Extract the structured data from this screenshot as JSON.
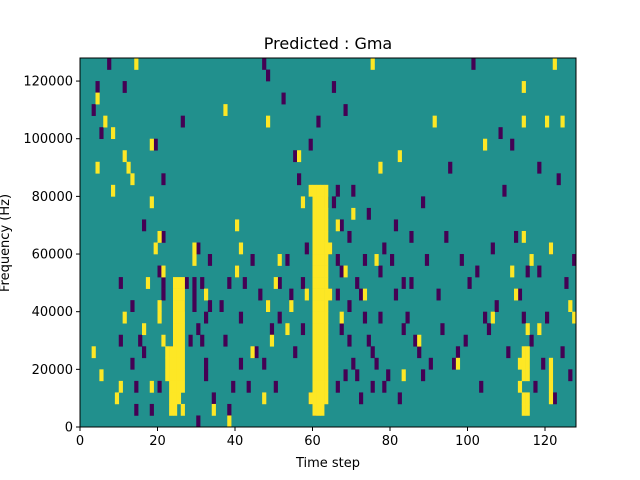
{
  "chart_data": {
    "type": "heatmap",
    "title": "Predicted : Gma",
    "xlabel": "Time step",
    "ylabel": "Frequency (Hz)",
    "xlim": [
      0,
      128
    ],
    "ylim": [
      0,
      128000
    ],
    "x_ticks": [
      0,
      20,
      40,
      60,
      80,
      100,
      120
    ],
    "x_tick_labels": [
      "0",
      "20",
      "40",
      "60",
      "80",
      "100",
      "120"
    ],
    "y_ticks": [
      0,
      20000,
      40000,
      60000,
      80000,
      100000,
      120000
    ],
    "y_tick_labels": [
      "0",
      "20000",
      "40000",
      "60000",
      "80000",
      "100000",
      "120000"
    ],
    "n_time_steps": 128,
    "n_freq_bins": 32,
    "freq_bin_hz": 4000,
    "grid": false,
    "legend": "none",
    "colors": {
      "background": "#21908d",
      "high": "#fde725",
      "low": "#440154"
    },
    "background_value": 0,
    "cells_high": [
      [
        3,
        6
      ],
      [
        4,
        22
      ],
      [
        4,
        28
      ],
      [
        5,
        4
      ],
      [
        6,
        26
      ],
      [
        8,
        25
      ],
      [
        8,
        20
      ],
      [
        9,
        2
      ],
      [
        10,
        3
      ],
      [
        11,
        23
      ],
      [
        11,
        9
      ],
      [
        12,
        22
      ],
      [
        13,
        21
      ],
      [
        14,
        31
      ],
      [
        16,
        8
      ],
      [
        17,
        12
      ],
      [
        18,
        3
      ],
      [
        18,
        24
      ],
      [
        18,
        19
      ],
      [
        19,
        15
      ],
      [
        20,
        10
      ],
      [
        20,
        9
      ],
      [
        20,
        16
      ],
      [
        21,
        13
      ],
      [
        21,
        7
      ],
      [
        22,
        6
      ],
      [
        22,
        5
      ],
      [
        22,
        4
      ],
      [
        23,
        6
      ],
      [
        23,
        5
      ],
      [
        23,
        4
      ],
      [
        23,
        3
      ],
      [
        23,
        2
      ],
      [
        23,
        1
      ],
      [
        24,
        12
      ],
      [
        24,
        11
      ],
      [
        24,
        10
      ],
      [
        24,
        9
      ],
      [
        24,
        8
      ],
      [
        24,
        7
      ],
      [
        24,
        6
      ],
      [
        24,
        5
      ],
      [
        24,
        4
      ],
      [
        24,
        3
      ],
      [
        24,
        2
      ],
      [
        24,
        1
      ],
      [
        25,
        12
      ],
      [
        25,
        11
      ],
      [
        25,
        10
      ],
      [
        25,
        9
      ],
      [
        25,
        8
      ],
      [
        25,
        7
      ],
      [
        25,
        6
      ],
      [
        25,
        5
      ],
      [
        25,
        4
      ],
      [
        25,
        3
      ],
      [
        25,
        2
      ],
      [
        26,
        12
      ],
      [
        26,
        11
      ],
      [
        26,
        10
      ],
      [
        26,
        9
      ],
      [
        26,
        8
      ],
      [
        26,
        7
      ],
      [
        26,
        6
      ],
      [
        26,
        5
      ],
      [
        26,
        4
      ],
      [
        26,
        3
      ],
      [
        26,
        1
      ],
      [
        29,
        15
      ],
      [
        29,
        14
      ],
      [
        32,
        11
      ],
      [
        34,
        1
      ],
      [
        37,
        27
      ],
      [
        38,
        0
      ],
      [
        40,
        13
      ],
      [
        40,
        17
      ],
      [
        41,
        15
      ],
      [
        44,
        6
      ],
      [
        47,
        2
      ],
      [
        48,
        10
      ],
      [
        48,
        26
      ],
      [
        49,
        7
      ],
      [
        50,
        12
      ],
      [
        51,
        14
      ],
      [
        53,
        8
      ],
      [
        54,
        10
      ],
      [
        56,
        23
      ],
      [
        57,
        19
      ],
      [
        58,
        11
      ],
      [
        59,
        2
      ],
      [
        59,
        20
      ],
      [
        60,
        20
      ],
      [
        60,
        19
      ],
      [
        60,
        18
      ],
      [
        60,
        17
      ],
      [
        60,
        16
      ],
      [
        60,
        15
      ],
      [
        60,
        14
      ],
      [
        60,
        13
      ],
      [
        60,
        12
      ],
      [
        60,
        11
      ],
      [
        60,
        10
      ],
      [
        60,
        9
      ],
      [
        60,
        8
      ],
      [
        60,
        7
      ],
      [
        60,
        6
      ],
      [
        60,
        5
      ],
      [
        60,
        4
      ],
      [
        60,
        3
      ],
      [
        60,
        2
      ],
      [
        60,
        1
      ],
      [
        61,
        20
      ],
      [
        61,
        19
      ],
      [
        61,
        18
      ],
      [
        61,
        17
      ],
      [
        61,
        16
      ],
      [
        61,
        15
      ],
      [
        61,
        14
      ],
      [
        61,
        13
      ],
      [
        61,
        12
      ],
      [
        61,
        11
      ],
      [
        61,
        10
      ],
      [
        61,
        9
      ],
      [
        61,
        8
      ],
      [
        61,
        7
      ],
      [
        61,
        6
      ],
      [
        61,
        5
      ],
      [
        61,
        4
      ],
      [
        61,
        3
      ],
      [
        61,
        2
      ],
      [
        61,
        1
      ],
      [
        62,
        20
      ],
      [
        62,
        19
      ],
      [
        62,
        18
      ],
      [
        62,
        17
      ],
      [
        62,
        16
      ],
      [
        62,
        15
      ],
      [
        62,
        14
      ],
      [
        62,
        13
      ],
      [
        62,
        12
      ],
      [
        62,
        11
      ],
      [
        62,
        10
      ],
      [
        62,
        9
      ],
      [
        62,
        8
      ],
      [
        62,
        7
      ],
      [
        62,
        6
      ],
      [
        62,
        5
      ],
      [
        62,
        4
      ],
      [
        62,
        3
      ],
      [
        62,
        2
      ],
      [
        62,
        1
      ],
      [
        63,
        20
      ],
      [
        63,
        19
      ],
      [
        63,
        18
      ],
      [
        63,
        17
      ],
      [
        63,
        16
      ],
      [
        63,
        15
      ],
      [
        63,
        14
      ],
      [
        63,
        13
      ],
      [
        63,
        12
      ],
      [
        63,
        11
      ],
      [
        63,
        10
      ],
      [
        63,
        9
      ],
      [
        63,
        8
      ],
      [
        63,
        7
      ],
      [
        63,
        6
      ],
      [
        63,
        5
      ],
      [
        63,
        4
      ],
      [
        63,
        3
      ],
      [
        63,
        2
      ],
      [
        64,
        15
      ],
      [
        64,
        11
      ],
      [
        66,
        17
      ],
      [
        67,
        9
      ],
      [
        68,
        13
      ],
      [
        70,
        18
      ],
      [
        73,
        11
      ],
      [
        75,
        31
      ],
      [
        76,
        14
      ],
      [
        77,
        22
      ],
      [
        82,
        23
      ],
      [
        83,
        4
      ],
      [
        87,
        7
      ],
      [
        91,
        26
      ],
      [
        97,
        5
      ],
      [
        104,
        24
      ],
      [
        106,
        9
      ],
      [
        111,
        13
      ],
      [
        112,
        11
      ],
      [
        113,
        5
      ],
      [
        113,
        3
      ],
      [
        114,
        29
      ],
      [
        114,
        26
      ],
      [
        114,
        16
      ],
      [
        114,
        6
      ],
      [
        114,
        5
      ],
      [
        114,
        4
      ],
      [
        114,
        2
      ],
      [
        114,
        1
      ],
      [
        115,
        8
      ],
      [
        115,
        6
      ],
      [
        115,
        5
      ],
      [
        115,
        4
      ],
      [
        115,
        2
      ],
      [
        115,
        1
      ],
      [
        116,
        14
      ],
      [
        118,
        8
      ],
      [
        120,
        26
      ],
      [
        121,
        15
      ],
      [
        121,
        5
      ],
      [
        121,
        4
      ],
      [
        121,
        3
      ],
      [
        121,
        2
      ],
      [
        122,
        31
      ],
      [
        124,
        26
      ],
      [
        126,
        10
      ],
      [
        127,
        9
      ]
    ],
    "cells_low": [
      [
        3,
        27
      ],
      [
        4,
        29
      ],
      [
        5,
        25
      ],
      [
        7,
        31
      ],
      [
        10,
        12
      ],
      [
        10,
        7
      ],
      [
        11,
        29
      ],
      [
        13,
        10
      ],
      [
        13,
        5
      ],
      [
        14,
        1
      ],
      [
        14,
        3
      ],
      [
        15,
        7
      ],
      [
        16,
        17
      ],
      [
        16,
        6
      ],
      [
        18,
        1
      ],
      [
        19,
        24
      ],
      [
        20,
        13
      ],
      [
        20,
        3
      ],
      [
        21,
        12
      ],
      [
        21,
        11
      ],
      [
        21,
        21
      ],
      [
        21,
        16
      ],
      [
        23,
        6
      ],
      [
        24,
        9
      ],
      [
        26,
        26
      ],
      [
        26,
        10
      ],
      [
        27,
        12
      ],
      [
        28,
        7
      ],
      [
        29,
        12
      ],
      [
        29,
        11
      ],
      [
        29,
        10
      ],
      [
        30,
        0
      ],
      [
        30,
        8
      ],
      [
        30,
        15
      ],
      [
        31,
        12
      ],
      [
        31,
        7
      ],
      [
        32,
        5
      ],
      [
        32,
        9
      ],
      [
        32,
        4
      ],
      [
        33,
        14
      ],
      [
        33,
        10
      ],
      [
        34,
        2
      ],
      [
        36,
        10
      ],
      [
        37,
        7
      ],
      [
        38,
        12
      ],
      [
        38,
        1
      ],
      [
        39,
        3
      ],
      [
        40,
        13
      ],
      [
        41,
        9
      ],
      [
        41,
        5
      ],
      [
        42,
        12
      ],
      [
        43,
        3
      ],
      [
        44,
        14
      ],
      [
        45,
        6
      ],
      [
        46,
        11
      ],
      [
        47,
        31
      ],
      [
        47,
        5
      ],
      [
        48,
        30
      ],
      [
        48,
        10
      ],
      [
        49,
        8
      ],
      [
        50,
        3
      ],
      [
        51,
        12
      ],
      [
        51,
        9
      ],
      [
        52,
        28
      ],
      [
        53,
        14
      ],
      [
        54,
        11
      ],
      [
        55,
        23
      ],
      [
        55,
        6
      ],
      [
        56,
        21
      ],
      [
        57,
        8
      ],
      [
        57,
        12
      ],
      [
        58,
        15
      ],
      [
        59,
        24
      ],
      [
        59,
        2
      ],
      [
        60,
        3
      ],
      [
        60,
        1
      ],
      [
        61,
        26
      ],
      [
        62,
        10
      ],
      [
        63,
        19
      ],
      [
        64,
        15
      ],
      [
        64,
        11
      ],
      [
        65,
        29
      ],
      [
        65,
        19
      ],
      [
        66,
        14
      ],
      [
        66,
        11
      ],
      [
        66,
        3
      ],
      [
        66,
        20
      ],
      [
        67,
        17
      ],
      [
        67,
        8
      ],
      [
        67,
        13
      ],
      [
        68,
        27
      ],
      [
        68,
        4
      ],
      [
        69,
        10
      ],
      [
        69,
        7
      ],
      [
        69,
        16
      ],
      [
        70,
        20
      ],
      [
        70,
        5
      ],
      [
        71,
        12
      ],
      [
        71,
        4
      ],
      [
        72,
        2
      ],
      [
        72,
        11
      ],
      [
        73,
        14
      ],
      [
        73,
        9
      ],
      [
        74,
        18
      ],
      [
        74,
        7
      ],
      [
        75,
        6
      ],
      [
        75,
        3
      ],
      [
        76,
        5
      ],
      [
        77,
        13
      ],
      [
        77,
        9
      ],
      [
        78,
        15
      ],
      [
        78,
        3
      ],
      [
        79,
        4
      ],
      [
        80,
        14
      ],
      [
        81,
        17
      ],
      [
        81,
        11
      ],
      [
        82,
        2
      ],
      [
        83,
        12
      ],
      [
        83,
        8
      ],
      [
        84,
        9
      ],
      [
        85,
        12
      ],
      [
        85,
        16
      ],
      [
        86,
        7
      ],
      [
        87,
        6
      ],
      [
        88,
        4
      ],
      [
        88,
        19
      ],
      [
        89,
        14
      ],
      [
        90,
        5
      ],
      [
        92,
        11
      ],
      [
        93,
        8
      ],
      [
        94,
        16
      ],
      [
        95,
        22
      ],
      [
        96,
        5
      ],
      [
        97,
        6
      ],
      [
        98,
        14
      ],
      [
        99,
        7
      ],
      [
        100,
        12
      ],
      [
        101,
        31
      ],
      [
        102,
        13
      ],
      [
        103,
        3
      ],
      [
        104,
        9
      ],
      [
        105,
        8
      ],
      [
        106,
        15
      ],
      [
        107,
        10
      ],
      [
        108,
        25
      ],
      [
        109,
        20
      ],
      [
        110,
        6
      ],
      [
        111,
        24
      ],
      [
        112,
        16
      ],
      [
        113,
        11
      ],
      [
        114,
        9
      ],
      [
        115,
        13
      ],
      [
        116,
        7
      ],
      [
        117,
        3
      ],
      [
        118,
        13
      ],
      [
        118,
        22
      ],
      [
        119,
        5
      ],
      [
        120,
        9
      ],
      [
        121,
        15
      ],
      [
        122,
        2
      ],
      [
        123,
        21
      ],
      [
        124,
        6
      ],
      [
        125,
        12
      ],
      [
        126,
        4
      ],
      [
        127,
        14
      ]
    ]
  }
}
